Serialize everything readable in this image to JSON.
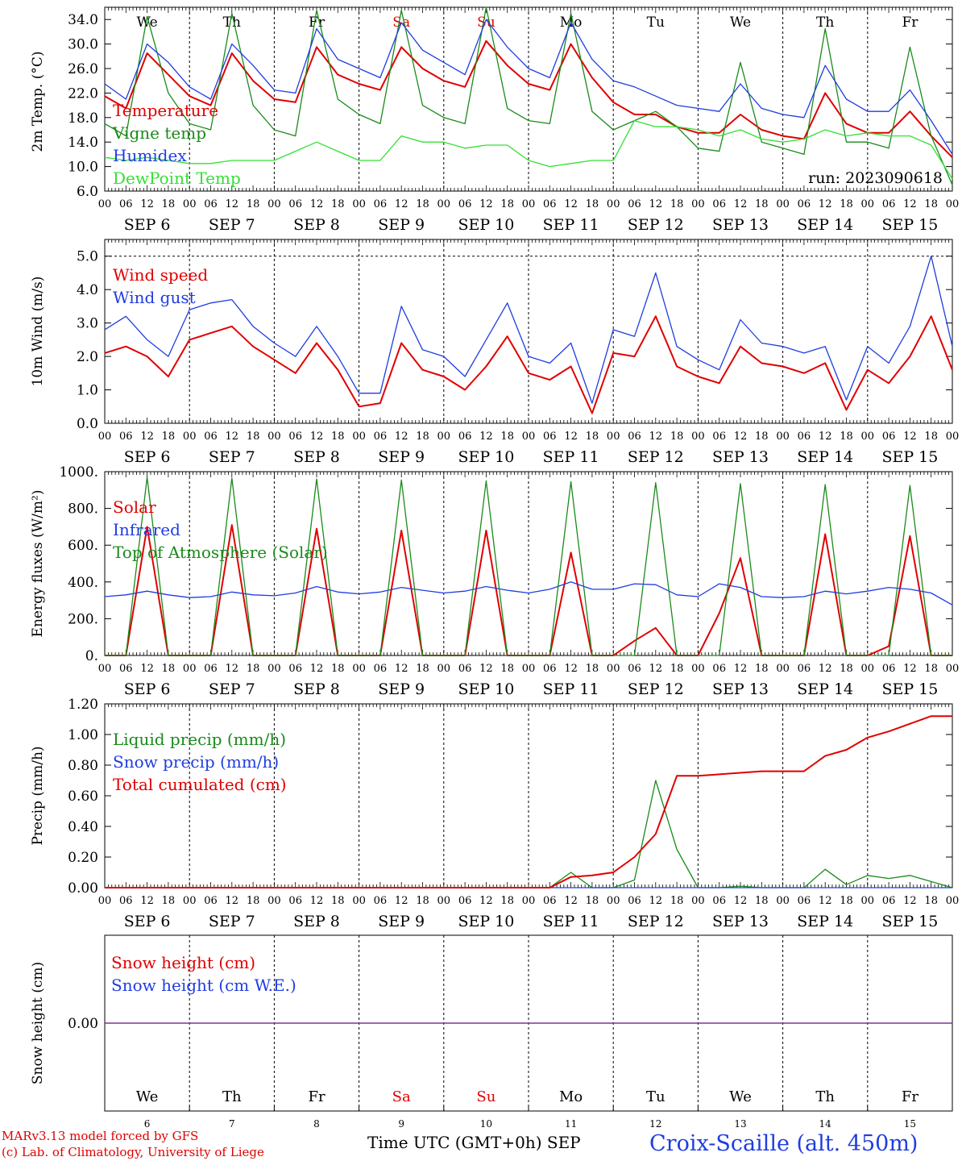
{
  "colors": {
    "red": "#e00000",
    "green": "#1a8a1a",
    "blue": "#1f3de0",
    "lime": "#33e033",
    "purple": "#7a2a9a",
    "black": "#000000"
  },
  "days": [
    {
      "abbr": "We",
      "weekend": false,
      "date": "SEP  6",
      "num": "6"
    },
    {
      "abbr": "Th",
      "weekend": false,
      "date": "SEP  7",
      "num": "7"
    },
    {
      "abbr": "Fr",
      "weekend": false,
      "date": "SEP  8",
      "num": "8"
    },
    {
      "abbr": "Sa",
      "weekend": true,
      "date": "SEP  9",
      "num": "9"
    },
    {
      "abbr": "Su",
      "weekend": true,
      "date": "SEP 10",
      "num": "10"
    },
    {
      "abbr": "Mo",
      "weekend": false,
      "date": "SEP 11",
      "num": "11"
    },
    {
      "abbr": "Tu",
      "weekend": false,
      "date": "SEP 12",
      "num": "12"
    },
    {
      "abbr": "We",
      "weekend": false,
      "date": "SEP 13",
      "num": "13"
    },
    {
      "abbr": "Th",
      "weekend": false,
      "date": "SEP 14",
      "num": "14"
    },
    {
      "abbr": "Fr",
      "weekend": false,
      "date": "SEP 15",
      "num": "15"
    }
  ],
  "hour_ticks": [
    "00",
    "06",
    "12",
    "18"
  ],
  "footer": {
    "credit_line1": "MARv3.13 model forced by GFS",
    "credit_line2": "(c) Lab. of Climatology, University of Liege",
    "time_label": "Time UTC (GMT+0h) SEP",
    "station": "Croix-Scaille (alt. 450m)"
  },
  "chart_data": [
    {
      "type": "line",
      "id": "temp",
      "ylabel": "2m Temp. (°C)",
      "ylim": [
        6,
        36
      ],
      "yticks": [
        "6.0",
        "10.0",
        "14.0",
        "18.0",
        "22.0",
        "26.0",
        "30.0",
        "34.0"
      ],
      "annotation": "run: 2023090618",
      "x": "hours since 2023-09-06 00 UTC, one point every 6 h",
      "series": [
        {
          "name": "Temperature",
          "color": "red",
          "values": [
            21.5,
            19.5,
            28.5,
            25,
            21.5,
            20,
            28.5,
            24,
            21,
            20.5,
            29.5,
            25,
            23.5,
            22.5,
            29.5,
            26,
            24,
            23,
            30.5,
            26.5,
            23.5,
            22.5,
            30,
            24.5,
            20.5,
            18.5,
            18.5,
            16.5,
            15.5,
            15.5,
            18.5,
            16,
            15,
            14.5,
            22,
            17,
            15.5,
            15.5,
            19,
            15,
            11.5
          ]
        },
        {
          "name": "Vigne temp",
          "color": "green",
          "values": [
            17,
            15,
            34.5,
            22,
            17,
            16,
            35,
            20,
            16,
            15,
            35.5,
            21,
            18.5,
            17,
            35.5,
            20,
            18,
            17,
            36,
            19.5,
            17.5,
            17,
            35,
            19,
            16,
            17.5,
            19,
            16.5,
            13,
            12.5,
            27,
            14,
            13,
            12,
            32.5,
            14,
            14,
            13,
            29.5,
            15,
            7
          ]
        },
        {
          "name": "Humidex",
          "color": "blue",
          "values": [
            23.5,
            21,
            30,
            27,
            23,
            21,
            30,
            26.5,
            22.5,
            22,
            32.5,
            27.5,
            26,
            24.5,
            33.5,
            29,
            27,
            25,
            34,
            29.5,
            26,
            24.5,
            33.5,
            27.5,
            24,
            23,
            21.5,
            20,
            19.5,
            19,
            23.5,
            19.5,
            18.5,
            18,
            26.5,
            21,
            19,
            19,
            22.5,
            17.5,
            12
          ]
        },
        {
          "name": "DewPoint Temp",
          "color": "lime",
          "values": [
            11.5,
            11,
            11.5,
            11,
            10.5,
            10.5,
            11,
            11,
            11,
            12.5,
            14,
            12.5,
            11,
            11,
            15,
            14,
            14,
            13,
            13.5,
            13.5,
            11,
            10,
            10.5,
            11,
            11,
            17.5,
            16.5,
            16.5,
            16,
            15,
            16,
            14.5,
            14,
            14.5,
            16,
            15,
            15.5,
            15,
            15,
            13.5,
            8
          ]
        }
      ]
    },
    {
      "type": "line",
      "id": "wind",
      "ylabel": "10m Wind (m/s)",
      "ylim": [
        0,
        5.5
      ],
      "yticks": [
        "0.0",
        "1.0",
        "2.0",
        "3.0",
        "4.0",
        "5.0"
      ],
      "x": "hours since 2023-09-06 00 UTC, one point every 6 h",
      "series": [
        {
          "name": "Wind speed",
          "color": "red",
          "values": [
            2.1,
            2.3,
            2.0,
            1.4,
            2.5,
            2.7,
            2.9,
            2.3,
            1.9,
            1.5,
            2.4,
            1.6,
            0.5,
            0.6,
            2.4,
            1.6,
            1.4,
            1.0,
            1.7,
            2.6,
            1.5,
            1.3,
            1.7,
            0.3,
            2.1,
            2.0,
            3.2,
            1.7,
            1.4,
            1.2,
            2.3,
            1.8,
            1.7,
            1.5,
            1.8,
            0.4,
            1.6,
            1.2,
            2.0,
            3.2,
            1.6
          ]
        },
        {
          "name": "Wind gust",
          "color": "blue",
          "values": [
            2.8,
            3.2,
            2.5,
            2.0,
            3.4,
            3.6,
            3.7,
            2.9,
            2.4,
            2.0,
            2.9,
            2.0,
            0.9,
            0.9,
            3.5,
            2.2,
            2.0,
            1.4,
            2.5,
            3.6,
            2.0,
            1.8,
            2.4,
            0.6,
            2.8,
            2.6,
            4.5,
            2.3,
            1.9,
            1.6,
            3.1,
            2.4,
            2.3,
            2.1,
            2.3,
            0.7,
            2.3,
            1.8,
            2.9,
            5.0,
            2.3
          ]
        }
      ]
    },
    {
      "type": "line",
      "id": "energy",
      "ylabel": "Energy fluxes (W/m²)",
      "ylim": [
        0,
        1000
      ],
      "yticks": [
        "0.",
        "200.",
        "400.",
        "600.",
        "800.",
        "1000."
      ],
      "x": "hours since 2023-09-06 00 UTC, one point every 6 h",
      "series": [
        {
          "name": "Solar",
          "color": "red",
          "values": [
            0,
            0,
            700,
            0,
            0,
            0,
            710,
            0,
            0,
            0,
            690,
            0,
            0,
            0,
            680,
            0,
            0,
            0,
            680,
            0,
            0,
            0,
            560,
            0,
            0,
            80,
            150,
            0,
            0,
            230,
            530,
            0,
            0,
            0,
            660,
            0,
            0,
            50,
            650,
            0,
            0
          ]
        },
        {
          "name": "Infrared",
          "color": "blue",
          "values": [
            320,
            330,
            350,
            330,
            315,
            320,
            345,
            330,
            325,
            340,
            375,
            345,
            335,
            345,
            370,
            355,
            340,
            350,
            375,
            355,
            340,
            360,
            400,
            360,
            360,
            390,
            385,
            330,
            320,
            390,
            370,
            320,
            315,
            320,
            350,
            335,
            350,
            370,
            360,
            340,
            275
          ]
        },
        {
          "name": "Top of Atmosphere (Solar)",
          "color": "green",
          "values": [
            0,
            0,
            970,
            0,
            0,
            0,
            965,
            0,
            0,
            0,
            960,
            0,
            0,
            0,
            955,
            0,
            0,
            0,
            950,
            0,
            0,
            0,
            945,
            0,
            0,
            0,
            940,
            0,
            0,
            0,
            935,
            0,
            0,
            0,
            930,
            0,
            0,
            0,
            925,
            0,
            0
          ]
        }
      ]
    },
    {
      "type": "line",
      "id": "precip",
      "ylabel": "Precip (mm/h)",
      "ylim": [
        0,
        1.2
      ],
      "yticks": [
        "0.00",
        "0.20",
        "0.40",
        "0.60",
        "0.80",
        "1.00",
        "1.20"
      ],
      "x": "hours since 2023-09-06 00 UTC, one point every 6 h",
      "series": [
        {
          "name": "Liquid precip (mm/h)",
          "color": "green",
          "values": [
            0,
            0,
            0,
            0,
            0,
            0,
            0,
            0,
            0,
            0,
            0,
            0,
            0,
            0,
            0,
            0,
            0,
            0,
            0,
            0,
            0,
            0,
            0.1,
            0,
            0,
            0.05,
            0.7,
            0.25,
            0,
            0,
            0.01,
            0,
            0,
            0,
            0.12,
            0.02,
            0.08,
            0.06,
            0.08,
            0.04,
            0
          ]
        },
        {
          "name": "Snow precip (mm/h)",
          "color": "blue",
          "values": [
            0,
            0,
            0,
            0,
            0,
            0,
            0,
            0,
            0,
            0,
            0,
            0,
            0,
            0,
            0,
            0,
            0,
            0,
            0,
            0,
            0,
            0,
            0,
            0,
            0,
            0,
            0,
            0,
            0,
            0,
            0,
            0,
            0,
            0,
            0,
            0,
            0,
            0,
            0,
            0,
            0
          ]
        },
        {
          "name": "Total cumulated (cm)",
          "color": "red",
          "values": [
            0,
            0,
            0,
            0,
            0,
            0,
            0,
            0,
            0,
            0,
            0,
            0,
            0,
            0,
            0,
            0,
            0,
            0,
            0,
            0,
            0,
            0,
            0.07,
            0.08,
            0.1,
            0.2,
            0.35,
            0.73,
            0.73,
            0.74,
            0.75,
            0.76,
            0.76,
            0.76,
            0.86,
            0.9,
            0.98,
            1.02,
            1.07,
            1.12,
            1.12
          ]
        }
      ]
    },
    {
      "type": "line",
      "id": "snow",
      "ylabel": "Snow height (cm)",
      "yticks": [
        "0.00"
      ],
      "x": "hours since 2023-09-06 00 UTC, one point every 6 h",
      "series": [
        {
          "name": "Snow height (cm)",
          "color": "red",
          "values": [
            0,
            0
          ]
        },
        {
          "name": "Snow height (cm W.E.)",
          "color": "blue",
          "values": [
            0,
            0
          ]
        }
      ]
    }
  ]
}
